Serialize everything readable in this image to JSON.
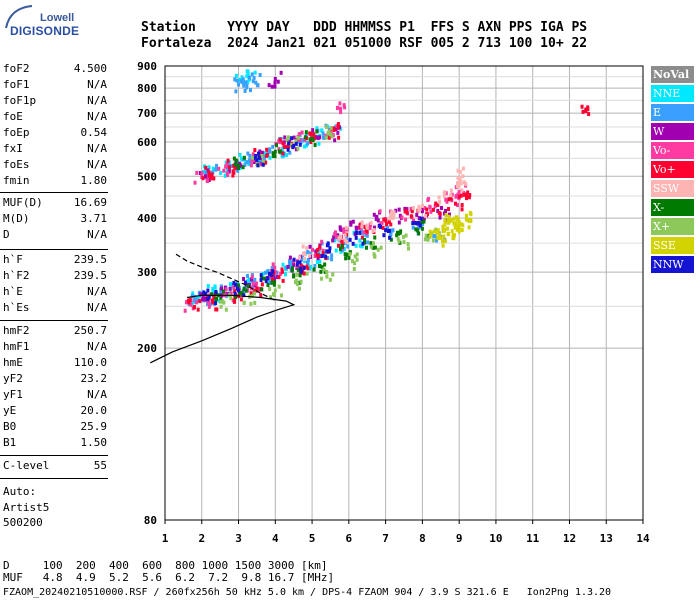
{
  "logo": {
    "line1": "Lowell",
    "line2": "DIGISONDE"
  },
  "header": {
    "row1": "Station    YYYY DAY   DDD HHMMSS P1  FFS S AXN PPS IGA PS",
    "row2": "Fortaleza  2024 Jan21 021 051000 RSF 005 2 713 100 10+ 22"
  },
  "params": [
    {
      "group": 1,
      "name": "foF2",
      "value": "4.500"
    },
    {
      "group": 1,
      "name": "foF1",
      "value": "N/A"
    },
    {
      "group": 1,
      "name": "foF1p",
      "value": "N/A"
    },
    {
      "group": 1,
      "name": "foE",
      "value": "N/A"
    },
    {
      "group": 1,
      "name": "foEp",
      "value": "0.54"
    },
    {
      "group": 1,
      "name": "fxI",
      "value": "N/A"
    },
    {
      "group": 1,
      "name": "foEs",
      "value": "N/A"
    },
    {
      "group": 1,
      "name": "fmin",
      "value": "1.80"
    },
    {
      "group": 2,
      "name": "MUF(D)",
      "value": "16.69"
    },
    {
      "group": 2,
      "name": "M(D)",
      "value": "3.71"
    },
    {
      "group": 2,
      "name": "D",
      "value": "N/A"
    },
    {
      "group": 3,
      "name": "h`F",
      "value": "239.5"
    },
    {
      "group": 3,
      "name": "h`F2",
      "value": "239.5"
    },
    {
      "group": 3,
      "name": "h`E",
      "value": "N/A"
    },
    {
      "group": 3,
      "name": "h`Es",
      "value": "N/A"
    },
    {
      "group": 4,
      "name": "hmF2",
      "value": "250.7"
    },
    {
      "group": 4,
      "name": "hmF1",
      "value": "N/A"
    },
    {
      "group": 4,
      "name": "hmE",
      "value": "110.0"
    },
    {
      "group": 4,
      "name": "yF2",
      "value": "23.2"
    },
    {
      "group": 4,
      "name": "yF1",
      "value": "N/A"
    },
    {
      "group": 4,
      "name": "yE",
      "value": "20.0"
    },
    {
      "group": 4,
      "name": "B0",
      "value": "25.9"
    },
    {
      "group": 4,
      "name": "B1",
      "value": "1.50"
    },
    {
      "group": 5,
      "name": "C-level",
      "value": "55"
    }
  ],
  "autoscale": {
    "line1": "Auto:",
    "line2": "Artist5",
    "line3": "500200"
  },
  "footer": {
    "distance_row": "D     100  200  400  600  800 1000 1500 3000 [km]",
    "muf_row": "MUF   4.8  4.9  5.2  5.6  6.2  7.2  9.8 16.7 [MHz]",
    "file_row": "FZAOM_20240210510000.RSF / 260fx256h 50 kHz 5.0 km / DPS-4 FZAOM 904 / 3.9 S 321.6 E   Ion2Png 1.3.20"
  },
  "legend": [
    {
      "label": "NoVal",
      "bg": "#8c8c8c",
      "fg": "#ffffff",
      "bold": true
    },
    {
      "label": "NNE",
      "bg": "#00e8ff",
      "fg": "#ffffff"
    },
    {
      "label": "E",
      "bg": "#3aa0ff",
      "fg": "#ffffff"
    },
    {
      "label": "W",
      "bg": "#a000b0",
      "fg": "#ffffff"
    },
    {
      "label": "Vo-",
      "bg": "#ff3aa0",
      "fg": "#ffffff"
    },
    {
      "label": "Vo+",
      "bg": "#ff0030",
      "fg": "#ffffff"
    },
    {
      "label": "SSW",
      "bg": "#ffb4b4",
      "fg": "#ffffff"
    },
    {
      "label": "X-",
      "bg": "#007a00",
      "fg": "#ffffff"
    },
    {
      "label": "X+",
      "bg": "#8cc85a",
      "fg": "#ffffff"
    },
    {
      "label": "SSE",
      "bg": "#d2d200",
      "fg": "#ffffff"
    },
    {
      "label": "NNW",
      "bg": "#1414d2",
      "fg": "#ffffff"
    }
  ],
  "chart_data": {
    "type": "scatter",
    "title": "",
    "xlabel": "",
    "ylabel": "",
    "xlim": [
      1,
      14
    ],
    "ylim": [
      80,
      900
    ],
    "y_scale": "log",
    "xticks": [
      1,
      2,
      3,
      4,
      5,
      6,
      7,
      8,
      9,
      10,
      11,
      12,
      13,
      14
    ],
    "yticks": [
      80,
      200,
      300,
      400,
      500,
      600,
      700,
      800,
      900
    ],
    "grid": true,
    "series": [
      {
        "name": "NNE",
        "color": "#00e8ff",
        "points": [
          [
            1.9,
            262
          ],
          [
            2.3,
            268
          ],
          [
            2.8,
            275
          ],
          [
            3.3,
            282
          ],
          [
            3.8,
            290
          ],
          [
            4.3,
            305
          ],
          [
            4.8,
            318
          ],
          [
            5.3,
            330
          ],
          [
            5.8,
            345
          ],
          [
            6.3,
            355
          ],
          [
            2.2,
            505
          ],
          [
            2.7,
            520
          ],
          [
            3.2,
            540
          ],
          [
            3.7,
            560
          ],
          [
            4.2,
            580
          ],
          [
            4.7,
            600
          ],
          [
            5.2,
            620
          ],
          [
            5.6,
            645
          ],
          [
            3.1,
            830
          ],
          [
            3.3,
            840
          ]
        ]
      },
      {
        "name": "E",
        "color": "#3aa0ff",
        "points": [
          [
            1.8,
            258
          ],
          [
            2.2,
            263
          ],
          [
            2.6,
            270
          ],
          [
            3.0,
            277
          ],
          [
            3.4,
            285
          ],
          [
            3.9,
            295
          ],
          [
            4.4,
            308
          ],
          [
            4.9,
            320
          ],
          [
            5.4,
            335
          ],
          [
            5.9,
            350
          ],
          [
            6.5,
            365
          ],
          [
            7.2,
            375
          ],
          [
            7.9,
            380
          ],
          [
            8.5,
            362
          ],
          [
            2.3,
            510
          ],
          [
            2.8,
            528
          ],
          [
            3.3,
            545
          ],
          [
            3.8,
            565
          ],
          [
            4.3,
            585
          ],
          [
            4.8,
            605
          ],
          [
            5.3,
            628
          ],
          [
            3.0,
            815
          ],
          [
            3.2,
            825
          ],
          [
            3.4,
            830
          ]
        ]
      },
      {
        "name": "W",
        "color": "#a000b0",
        "points": [
          [
            2.1,
            259
          ],
          [
            2.7,
            267
          ],
          [
            3.3,
            280
          ],
          [
            3.9,
            298
          ],
          [
            4.5,
            312
          ],
          [
            5.1,
            335
          ],
          [
            5.7,
            365
          ],
          [
            6.2,
            380
          ],
          [
            6.8,
            395
          ],
          [
            7.4,
            405
          ],
          [
            8.0,
            415
          ],
          [
            8.6,
            410
          ],
          [
            2.1,
            500
          ],
          [
            2.9,
            525
          ],
          [
            3.6,
            555
          ],
          [
            4.4,
            590
          ],
          [
            5.1,
            615
          ],
          [
            5.7,
            630
          ],
          [
            4.0,
            840
          ]
        ]
      },
      {
        "name": "Vo-",
        "color": "#ff3aa0",
        "points": [
          [
            1.7,
            252
          ],
          [
            2.2,
            258
          ],
          [
            2.8,
            268
          ],
          [
            3.4,
            282
          ],
          [
            4.0,
            300
          ],
          [
            4.6,
            318
          ],
          [
            5.2,
            340
          ],
          [
            5.8,
            362
          ],
          [
            6.4,
            382
          ],
          [
            7.0,
            398
          ],
          [
            7.6,
            410
          ],
          [
            8.2,
            425
          ],
          [
            8.8,
            440
          ],
          [
            9.0,
            460
          ],
          [
            2.0,
            498
          ],
          [
            2.6,
            515
          ],
          [
            3.4,
            545
          ],
          [
            4.1,
            578
          ],
          [
            4.8,
            608
          ],
          [
            5.5,
            640
          ],
          [
            5.7,
            720
          ]
        ]
      },
      {
        "name": "Vo+",
        "color": "#ff0030",
        "points": [
          [
            1.8,
            249
          ],
          [
            2.3,
            255
          ],
          [
            2.9,
            262
          ],
          [
            3.5,
            275
          ],
          [
            4.1,
            292
          ],
          [
            4.7,
            310
          ],
          [
            5.3,
            332
          ],
          [
            5.9,
            355
          ],
          [
            6.5,
            372
          ],
          [
            7.1,
            392
          ],
          [
            7.7,
            404
          ],
          [
            8.3,
            418
          ],
          [
            8.9,
            432
          ],
          [
            9.2,
            445
          ],
          [
            2.2,
            502
          ],
          [
            2.9,
            522
          ],
          [
            3.6,
            552
          ],
          [
            4.3,
            585
          ],
          [
            5.0,
            612
          ],
          [
            5.6,
            640
          ],
          [
            12.5,
            715
          ]
        ]
      },
      {
        "name": "SSW",
        "color": "#ffb4b4",
        "points": [
          [
            6.5,
            380
          ],
          [
            7.2,
            400
          ],
          [
            7.9,
            420
          ],
          [
            8.6,
            450
          ],
          [
            9.0,
            475
          ],
          [
            9.1,
            500
          ],
          [
            5.9,
            365
          ],
          [
            4.8,
            330
          ]
        ]
      },
      {
        "name": "X-",
        "color": "#007a00",
        "points": [
          [
            2.4,
            260
          ],
          [
            3.1,
            268
          ],
          [
            3.8,
            280
          ],
          [
            4.5,
            295
          ],
          [
            5.2,
            310
          ],
          [
            5.9,
            330
          ],
          [
            6.6,
            350
          ],
          [
            7.3,
            365
          ],
          [
            8.0,
            378
          ],
          [
            3.0,
            530
          ],
          [
            4.0,
            570
          ],
          [
            5.0,
            610
          ]
        ]
      },
      {
        "name": "X+",
        "color": "#8cc85a",
        "points": [
          [
            2.6,
            255
          ],
          [
            3.3,
            263
          ],
          [
            4.0,
            272
          ],
          [
            4.7,
            285
          ],
          [
            5.4,
            300
          ],
          [
            6.1,
            318
          ],
          [
            6.8,
            338
          ],
          [
            7.5,
            352
          ],
          [
            8.2,
            362
          ],
          [
            3.5,
            550
          ],
          [
            4.5,
            590
          ],
          [
            5.5,
            625
          ]
        ]
      },
      {
        "name": "SSE",
        "color": "#d2d200",
        "points": [
          [
            8.5,
            360
          ],
          [
            8.7,
            368
          ],
          [
            8.9,
            380
          ],
          [
            9.0,
            392
          ],
          [
            9.2,
            405
          ],
          [
            8.6,
            375
          ],
          [
            8.8,
            395
          ],
          [
            9.1,
            385
          ],
          [
            8.4,
            370
          ],
          [
            9.0,
            372
          ]
        ]
      },
      {
        "name": "NNW",
        "color": "#1414d2",
        "points": [
          [
            2.2,
            262
          ],
          [
            3.0,
            272
          ],
          [
            3.8,
            290
          ],
          [
            4.6,
            312
          ],
          [
            5.4,
            335
          ],
          [
            6.2,
            360
          ],
          [
            7.0,
            375
          ],
          [
            7.8,
            390
          ],
          [
            3.5,
            545
          ],
          [
            4.5,
            588
          ]
        ]
      }
    ],
    "profile_solid": [
      [
        0.6,
        185
      ],
      [
        1.2,
        196
      ],
      [
        2.0,
        208
      ],
      [
        2.8,
        222
      ],
      [
        3.5,
        236
      ],
      [
        4.1,
        246
      ],
      [
        4.5,
        252
      ],
      [
        4.3,
        257
      ],
      [
        3.6,
        262
      ],
      [
        2.8,
        265
      ],
      [
        2.0,
        265
      ],
      [
        1.6,
        262
      ]
    ],
    "profile_dashed": [
      [
        1.3,
        330
      ],
      [
        1.6,
        318
      ],
      [
        2.0,
        308
      ],
      [
        2.4,
        300
      ],
      [
        2.8,
        290
      ],
      [
        3.2,
        280
      ],
      [
        3.6,
        268
      ],
      [
        4.0,
        258
      ]
    ]
  }
}
